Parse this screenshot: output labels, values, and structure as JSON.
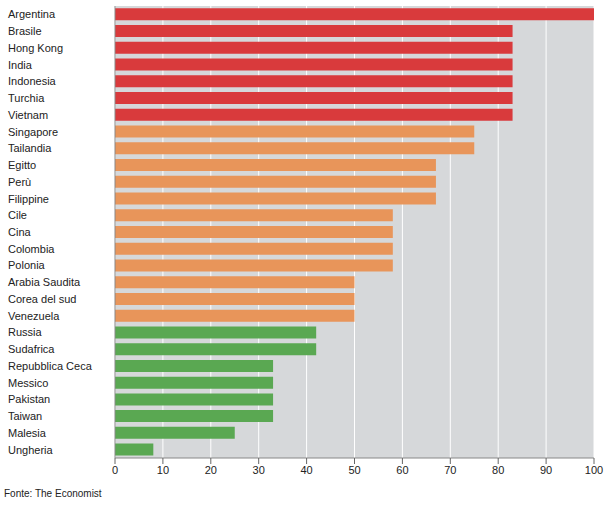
{
  "chart_data": {
    "type": "bar",
    "orientation": "horizontal",
    "source": "Fonte: The Economist",
    "categories": [
      "Argentina",
      "Brasile",
      "Hong Kong",
      "India",
      "Indonesia",
      "Turchia",
      "Vietnam",
      "Singapore",
      "Tailandia",
      "Egitto",
      "Perù",
      "Filippine",
      "Cile",
      "Cina",
      "Colombia",
      "Polonia",
      "Arabia Saudita",
      "Corea del sud",
      "Venezuela",
      "Russia",
      "Sudafrica",
      "Repubblica Ceca",
      "Messico",
      "Pakistan",
      "Taiwan",
      "Malesia",
      "Ungheria"
    ],
    "values": [
      100,
      83,
      83,
      83,
      83,
      83,
      83,
      75,
      75,
      67,
      67,
      67,
      58,
      58,
      58,
      58,
      50,
      50,
      50,
      42,
      42,
      33,
      33,
      33,
      33,
      25,
      8
    ],
    "colors": [
      "#d93a3c",
      "#d93a3c",
      "#d93a3c",
      "#d93a3c",
      "#d93a3c",
      "#d93a3c",
      "#d93a3c",
      "#e8955a",
      "#e8955a",
      "#e8955a",
      "#e8955a",
      "#e8955a",
      "#e8955a",
      "#e8955a",
      "#e8955a",
      "#e8955a",
      "#e8955a",
      "#e8955a",
      "#e8955a",
      "#5aa852",
      "#5aa852",
      "#5aa852",
      "#5aa852",
      "#5aa852",
      "#5aa852",
      "#5aa852",
      "#5aa852"
    ],
    "xlim": [
      0,
      100
    ],
    "xticks": [
      0,
      10,
      20,
      30,
      40,
      50,
      60,
      70,
      80,
      90,
      100
    ],
    "grid": true
  }
}
